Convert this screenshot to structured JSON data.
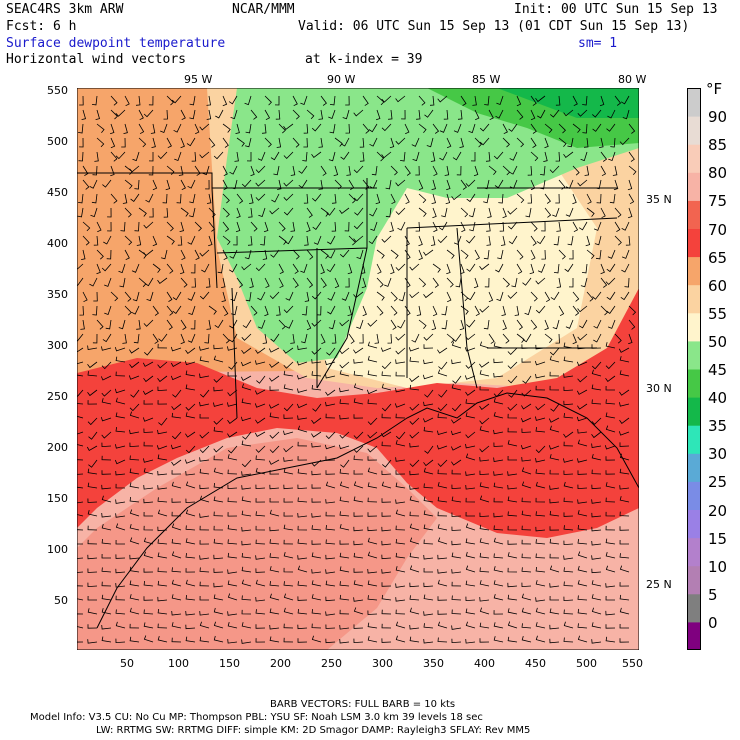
{
  "header": {
    "model": "SEAC4RS  3km ARW",
    "org": "NCAR/MMM",
    "init": "Init: 00 UTC Sun 15 Sep 13",
    "fcst": "Fcst:    6 h",
    "valid": "Valid: 06 UTC Sun 15 Sep 13 (01 CDT Sun 15 Sep 13)",
    "field1": "Surface dewpoint temperature",
    "smooth": "sm= 1",
    "field2": "Horizontal wind vectors",
    "kindex": "at k-index =  39"
  },
  "map": {
    "x_axis_ticks": [
      "50",
      "100",
      "150",
      "200",
      "250",
      "300",
      "350",
      "400",
      "450",
      "500",
      "550"
    ],
    "y_axis_ticks": [
      "50",
      "100",
      "150",
      "200",
      "250",
      "300",
      "350",
      "400",
      "450",
      "500",
      "550"
    ],
    "lon_labels": [
      "95 W",
      "90 W",
      "85 W",
      "80 W"
    ],
    "lat_labels": [
      "35 N",
      "30 N",
      "25 N"
    ]
  },
  "colorbar": {
    "unit": "°F",
    "levels": [
      "0",
      "5",
      "10",
      "15",
      "20",
      "25",
      "30",
      "35",
      "40",
      "45",
      "50",
      "55",
      "60",
      "65",
      "70",
      "75",
      "80",
      "85",
      "90"
    ],
    "colors": [
      "#7f007f",
      "#7f7f7f",
      "#b37fb3",
      "#b380cc",
      "#9a80e6",
      "#7a8ce6",
      "#5aaad6",
      "#2ee6b8",
      "#14b84a",
      "#46c846",
      "#8ae68a",
      "#fff4cc",
      "#fbd3a1",
      "#f6a56a",
      "#f4423c",
      "#f26450",
      "#f7b3a6",
      "#f9ccb8",
      "#e8dcd4",
      "#cccccc"
    ]
  },
  "footer": {
    "barb": "BARB VECTORS:  FULL BARB = 10 kts",
    "line1": "Model Info: V3.5      CU: No Cu     MP: Thompson     PBL: YSU      SF: Noah LSM     3.0 km   39 levels    18 sec",
    "line2": "LW: RRTMG    SW: RRTMG    DIFF: simple KM: 2D Smagor DAMP: Rayleigh3   SFLAY: Rev MM5"
  }
}
